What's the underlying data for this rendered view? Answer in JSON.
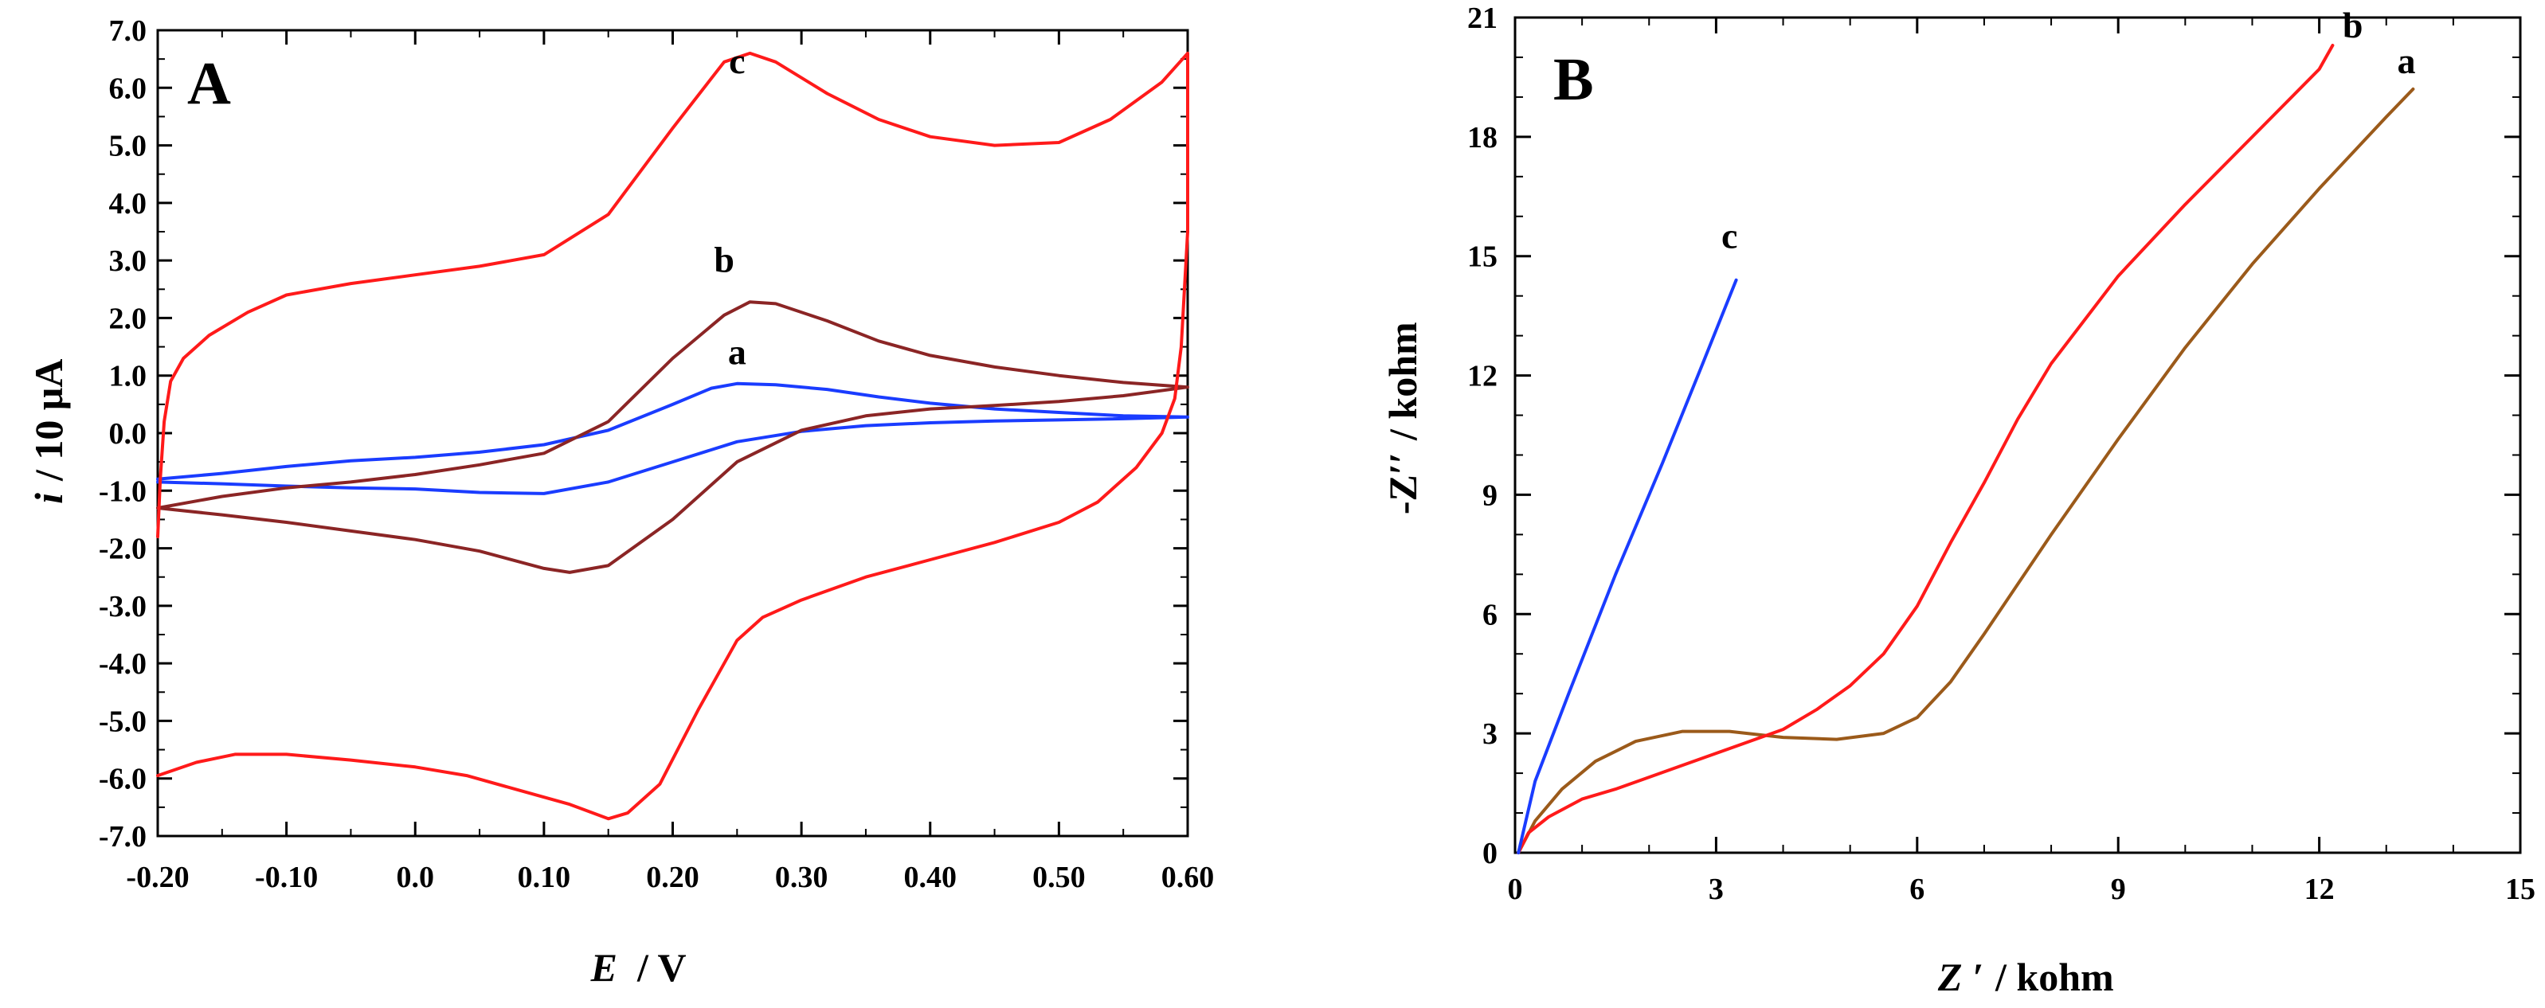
{
  "chart_data": [
    {
      "id": "A",
      "type": "line",
      "panel_label": "A",
      "xlabel": {
        "var": "E",
        "unit": "/  V"
      },
      "ylabel": {
        "var": "i",
        "unit": "/ 10 μA"
      },
      "xlim": [
        -0.2,
        0.6
      ],
      "ylim": [
        -7.0,
        7.0
      ],
      "x_ticks": [
        -0.2,
        -0.1,
        0.0,
        0.1,
        0.2,
        0.3,
        0.4,
        0.5,
        0.6
      ],
      "x_tick_labels": [
        "-0.20",
        "-0.10",
        "0.0",
        "0.10",
        "0.20",
        "0.30",
        "0.40",
        "0.50",
        "0.60"
      ],
      "y_ticks": [
        -7,
        -6,
        -5,
        -4,
        -3,
        -2,
        -1,
        0,
        1,
        2,
        3,
        4,
        5,
        6,
        7
      ],
      "y_tick_labels": [
        "-7.0",
        "-6.0",
        "-5.0",
        "-4.0",
        "-3.0",
        "-2.0",
        "-1.0",
        "0.0",
        "1.0",
        "2.0",
        "3.0",
        "4.0",
        "5.0",
        "6.0",
        "7.0"
      ],
      "series": [
        {
          "name": "a",
          "color": "#1a3cff",
          "label_at": [
            0.25,
            1.2
          ],
          "points": [
            [
              -0.2,
              -0.8
            ],
            [
              -0.15,
              -0.7
            ],
            [
              -0.1,
              -0.58
            ],
            [
              -0.05,
              -0.48
            ],
            [
              0.0,
              -0.42
            ],
            [
              0.05,
              -0.33
            ],
            [
              0.1,
              -0.2
            ],
            [
              0.15,
              0.05
            ],
            [
              0.2,
              0.5
            ],
            [
              0.23,
              0.78
            ],
            [
              0.25,
              0.86
            ],
            [
              0.28,
              0.84
            ],
            [
              0.32,
              0.76
            ],
            [
              0.36,
              0.63
            ],
            [
              0.4,
              0.52
            ],
            [
              0.45,
              0.42
            ],
            [
              0.5,
              0.36
            ],
            [
              0.55,
              0.3
            ],
            [
              0.6,
              0.28
            ],
            [
              0.55,
              0.25
            ],
            [
              0.5,
              0.23
            ],
            [
              0.45,
              0.21
            ],
            [
              0.4,
              0.18
            ],
            [
              0.35,
              0.13
            ],
            [
              0.3,
              0.03
            ],
            [
              0.25,
              -0.15
            ],
            [
              0.2,
              -0.5
            ],
            [
              0.15,
              -0.85
            ],
            [
              0.1,
              -1.05
            ],
            [
              0.05,
              -1.03
            ],
            [
              0.0,
              -0.97
            ],
            [
              -0.05,
              -0.95
            ],
            [
              -0.1,
              -0.92
            ],
            [
              -0.15,
              -0.88
            ],
            [
              -0.2,
              -0.85
            ]
          ]
        },
        {
          "name": "b",
          "color": "#8b2525",
          "label_at": [
            0.24,
            2.8
          ],
          "points": [
            [
              -0.2,
              -1.3
            ],
            [
              -0.15,
              -1.1
            ],
            [
              -0.1,
              -0.95
            ],
            [
              -0.05,
              -0.85
            ],
            [
              0.0,
              -0.72
            ],
            [
              0.05,
              -0.55
            ],
            [
              0.1,
              -0.35
            ],
            [
              0.15,
              0.2
            ],
            [
              0.2,
              1.3
            ],
            [
              0.24,
              2.05
            ],
            [
              0.26,
              2.28
            ],
            [
              0.28,
              2.25
            ],
            [
              0.32,
              1.95
            ],
            [
              0.36,
              1.6
            ],
            [
              0.4,
              1.35
            ],
            [
              0.45,
              1.15
            ],
            [
              0.5,
              1.0
            ],
            [
              0.55,
              0.88
            ],
            [
              0.6,
              0.8
            ],
            [
              0.55,
              0.65
            ],
            [
              0.5,
              0.55
            ],
            [
              0.45,
              0.48
            ],
            [
              0.4,
              0.42
            ],
            [
              0.35,
              0.3
            ],
            [
              0.3,
              0.05
            ],
            [
              0.25,
              -0.5
            ],
            [
              0.2,
              -1.5
            ],
            [
              0.15,
              -2.3
            ],
            [
              0.12,
              -2.42
            ],
            [
              0.1,
              -2.35
            ],
            [
              0.05,
              -2.05
            ],
            [
              0.0,
              -1.85
            ],
            [
              -0.05,
              -1.7
            ],
            [
              -0.1,
              -1.55
            ],
            [
              -0.15,
              -1.42
            ],
            [
              -0.2,
              -1.3
            ]
          ]
        },
        {
          "name": "c",
          "color": "#ff1a1a",
          "label_at": [
            0.25,
            6.25
          ],
          "points": [
            [
              -0.2,
              -1.8
            ],
            [
              -0.198,
              -0.8
            ],
            [
              -0.195,
              0.2
            ],
            [
              -0.19,
              0.9
            ],
            [
              -0.18,
              1.3
            ],
            [
              -0.16,
              1.7
            ],
            [
              -0.13,
              2.1
            ],
            [
              -0.1,
              2.4
            ],
            [
              -0.05,
              2.6
            ],
            [
              0.0,
              2.75
            ],
            [
              0.05,
              2.9
            ],
            [
              0.1,
              3.1
            ],
            [
              0.15,
              3.8
            ],
            [
              0.2,
              5.3
            ],
            [
              0.24,
              6.45
            ],
            [
              0.26,
              6.6
            ],
            [
              0.28,
              6.45
            ],
            [
              0.32,
              5.9
            ],
            [
              0.36,
              5.45
            ],
            [
              0.4,
              5.15
            ],
            [
              0.45,
              5.0
            ],
            [
              0.5,
              5.05
            ],
            [
              0.54,
              5.45
            ],
            [
              0.58,
              6.1
            ],
            [
              0.6,
              6.6
            ],
            [
              0.6,
              3.5
            ],
            [
              0.595,
              1.5
            ],
            [
              0.59,
              0.6
            ],
            [
              0.58,
              0.0
            ],
            [
              0.56,
              -0.6
            ],
            [
              0.53,
              -1.2
            ],
            [
              0.5,
              -1.55
            ],
            [
              0.45,
              -1.9
            ],
            [
              0.4,
              -2.2
            ],
            [
              0.35,
              -2.5
            ],
            [
              0.3,
              -2.9
            ],
            [
              0.27,
              -3.2
            ],
            [
              0.25,
              -3.6
            ],
            [
              0.22,
              -4.8
            ],
            [
              0.19,
              -6.1
            ],
            [
              0.165,
              -6.6
            ],
            [
              0.15,
              -6.7
            ],
            [
              0.12,
              -6.45
            ],
            [
              0.08,
              -6.2
            ],
            [
              0.04,
              -5.95
            ],
            [
              0.0,
              -5.8
            ],
            [
              -0.05,
              -5.68
            ],
            [
              -0.1,
              -5.58
            ],
            [
              -0.14,
              -5.58
            ],
            [
              -0.17,
              -5.72
            ],
            [
              -0.2,
              -5.95
            ]
          ]
        }
      ]
    },
    {
      "id": "B",
      "type": "line",
      "panel_label": "B",
      "xlabel": {
        "var": "Z ′",
        "unit": "/ kohm"
      },
      "ylabel": {
        "var": "-Z′′",
        "unit": "/ kohm"
      },
      "xlim": [
        0,
        15
      ],
      "ylim": [
        0,
        21
      ],
      "x_ticks": [
        0,
        3,
        6,
        9,
        12,
        15
      ],
      "x_tick_labels": [
        "0",
        "3",
        "6",
        "9",
        "12",
        "15"
      ],
      "y_ticks": [
        0,
        3,
        6,
        9,
        12,
        15,
        18,
        21
      ],
      "y_tick_labels": [
        "0",
        "3",
        "6",
        "9",
        "12",
        "15",
        "18",
        "21"
      ],
      "series": [
        {
          "name": "a",
          "color": "#9b5a1a",
          "label_at": [
            13.3,
            19.6
          ],
          "points": [
            [
              0.05,
              0.0
            ],
            [
              0.3,
              0.8
            ],
            [
              0.7,
              1.6
            ],
            [
              1.2,
              2.3
            ],
            [
              1.8,
              2.8
            ],
            [
              2.5,
              3.05
            ],
            [
              3.2,
              3.05
            ],
            [
              4.0,
              2.9
            ],
            [
              4.8,
              2.85
            ],
            [
              5.5,
              3.0
            ],
            [
              6.0,
              3.4
            ],
            [
              6.5,
              4.3
            ],
            [
              7.0,
              5.5
            ],
            [
              8.0,
              8.0
            ],
            [
              9.0,
              10.4
            ],
            [
              10.0,
              12.7
            ],
            [
              11.0,
              14.8
            ],
            [
              12.0,
              16.7
            ],
            [
              13.0,
              18.5
            ],
            [
              13.4,
              19.2
            ]
          ]
        },
        {
          "name": "b",
          "color": "#ff1a1a",
          "label_at": [
            12.5,
            20.5
          ],
          "points": [
            [
              0.05,
              0.0
            ],
            [
              0.2,
              0.5
            ],
            [
              0.5,
              0.9
            ],
            [
              1.0,
              1.35
            ],
            [
              1.5,
              1.6
            ],
            [
              2.0,
              1.9
            ],
            [
              2.5,
              2.2
            ],
            [
              3.0,
              2.5
            ],
            [
              3.5,
              2.8
            ],
            [
              4.0,
              3.1
            ],
            [
              4.5,
              3.6
            ],
            [
              5.0,
              4.2
            ],
            [
              5.5,
              5.0
            ],
            [
              6.0,
              6.2
            ],
            [
              6.5,
              7.8
            ],
            [
              7.0,
              9.3
            ],
            [
              7.5,
              10.9
            ],
            [
              8.0,
              12.3
            ],
            [
              9.0,
              14.5
            ],
            [
              10.0,
              16.3
            ],
            [
              11.0,
              18.0
            ],
            [
              12.0,
              19.7
            ],
            [
              12.2,
              20.3
            ]
          ]
        },
        {
          "name": "c",
          "color": "#1a3cff",
          "label_at": [
            3.2,
            15.2
          ],
          "points": [
            [
              0.05,
              0.0
            ],
            [
              0.3,
              1.8
            ],
            [
              0.8,
              4.0
            ],
            [
              1.5,
              7.0
            ],
            [
              2.2,
              9.8
            ],
            [
              2.8,
              12.3
            ],
            [
              3.3,
              14.4
            ]
          ]
        }
      ]
    }
  ]
}
